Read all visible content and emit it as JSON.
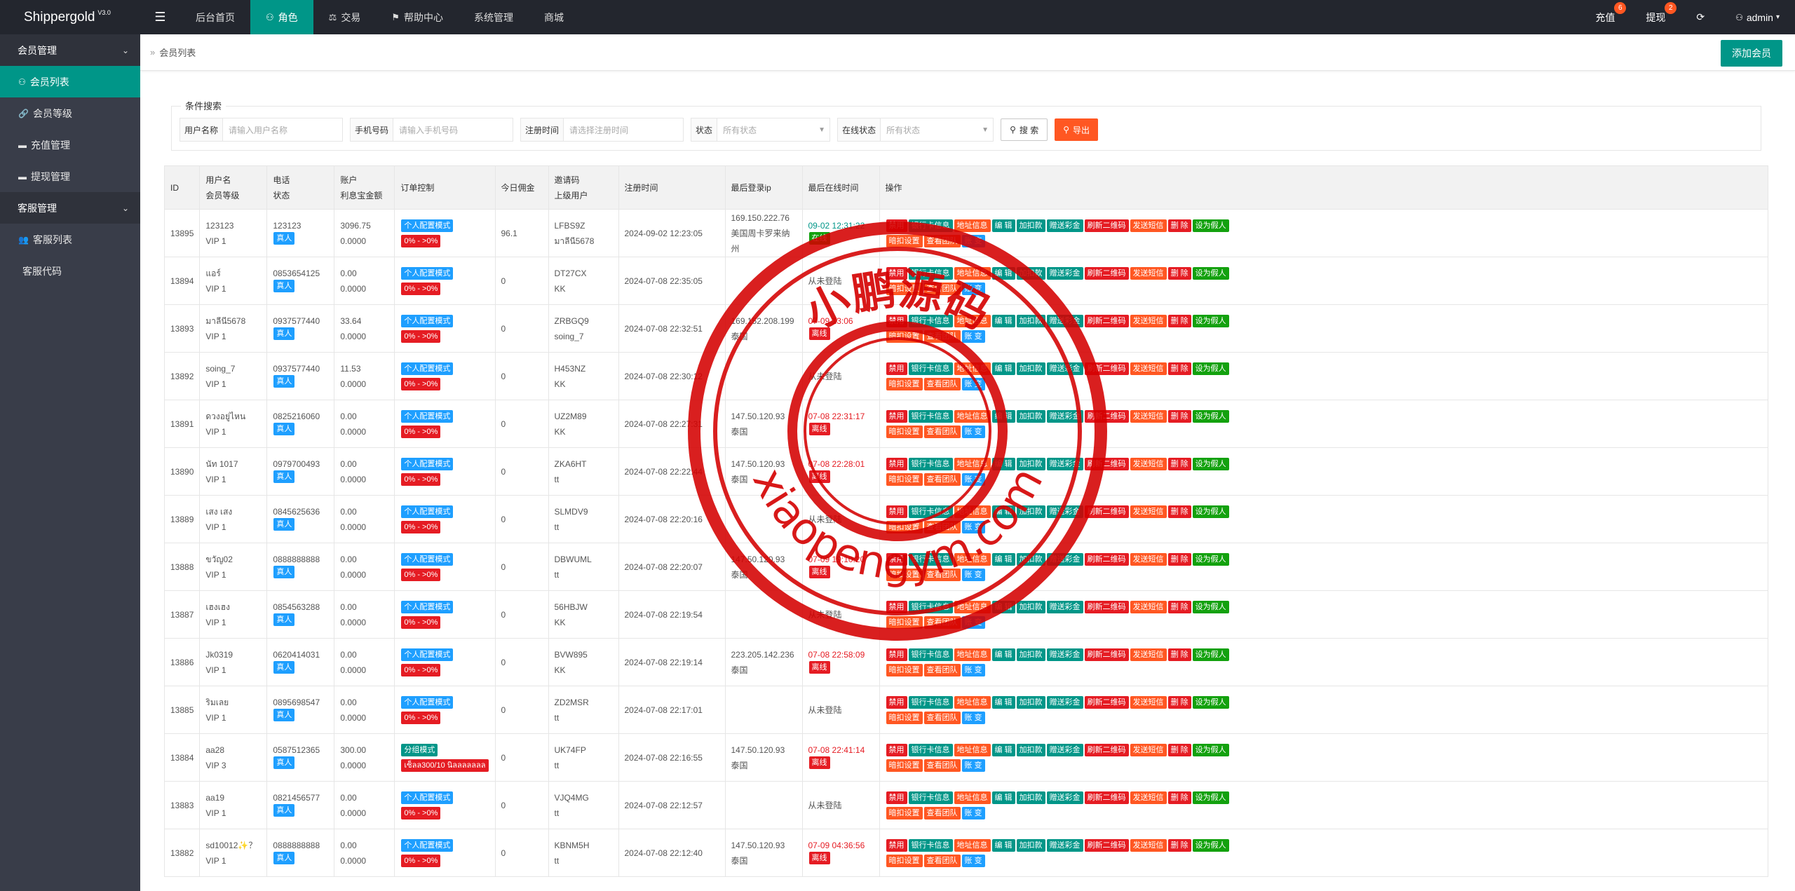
{
  "app": {
    "name": "Shippergold",
    "version": "V3.0"
  },
  "topnav": [
    {
      "label": "后台首页",
      "icon": ""
    },
    {
      "label": "角色",
      "icon": "user-icon",
      "active": true
    },
    {
      "label": "交易",
      "icon": "scale-icon"
    },
    {
      "label": "帮助中心",
      "icon": "flag-icon"
    },
    {
      "label": "系统管理",
      "icon": ""
    },
    {
      "label": "商城",
      "icon": ""
    }
  ],
  "topright": {
    "recharge": "充值",
    "recharge_badge": "6",
    "withdraw": "提现",
    "withdraw_badge": "2",
    "user": "admin"
  },
  "sidebar": {
    "groups": [
      {
        "label": "会员管理",
        "items": [
          "会员列表",
          "会员等级",
          "充值管理",
          "提现管理"
        ]
      },
      {
        "label": "客服管理",
        "items": [
          "客服列表",
          "客服代码"
        ]
      }
    ]
  },
  "breadcrumb": "会员列表",
  "add_button": "添加会员",
  "search": {
    "title": "条件搜索",
    "username_label": "用户名称",
    "username_placeholder": "请输入用户名称",
    "phone_label": "手机号码",
    "phone_placeholder": "请输入手机号码",
    "regtime_label": "注册时间",
    "regtime_placeholder": "请选择注册时间",
    "status_label": "状态",
    "status_value": "所有状态",
    "online_label": "在线状态",
    "online_value": "所有状态",
    "search_btn": "搜 索",
    "export_btn": "导出"
  },
  "table": {
    "headers": {
      "id": "ID",
      "user1": "用户名",
      "user2": "会员等级",
      "phone1": "电话",
      "phone2": "状态",
      "acct1": "账户",
      "acct2": "利息宝金额",
      "order": "订单控制",
      "today": "今日佣金",
      "code1": "邀请码",
      "code2": "上级用户",
      "reg": "注册时间",
      "lastip": "最后登录ip",
      "lastonline": "最后在线时间",
      "ops": "操作"
    },
    "rows": [
      {
        "id": "13895",
        "name": "123123",
        "level": "VIP 1",
        "phone": "123123",
        "status": "真人",
        "balance": "3096.75",
        "interest": "0.0000",
        "mode": "个人配置模式",
        "range": "0% - >0%",
        "today": "96.1",
        "code": "LFBS9Z",
        "parent": "มาลีนี5678",
        "reg": "2024-09-02 12:23:05",
        "ip": "169.150.222.76",
        "loc": "美国周卡罗来纳州",
        "last": "09-02 12:31:22",
        "state": "在线"
      },
      {
        "id": "13894",
        "name": "แอร์",
        "level": "VIP 1",
        "phone": "0853654125",
        "status": "真人",
        "balance": "0.00",
        "interest": "0.0000",
        "mode": "个人配置模式",
        "range": "0% - >0%",
        "today": "0",
        "code": "DT27CX",
        "parent": "KK",
        "reg": "2024-07-08 22:35:05",
        "ip": "",
        "loc": "",
        "last": "从未登陆",
        "state": ""
      },
      {
        "id": "13893",
        "name": "มาลีนี5678",
        "level": "VIP 1",
        "phone": "0937577440",
        "status": "真人",
        "balance": "33.64",
        "interest": "0.0000",
        "mode": "个人配置模式",
        "range": "0% - >0%",
        "today": "0",
        "code": "ZRBGQ9",
        "parent": "soing_7",
        "reg": "2024-07-08 22:32:51",
        "ip": "169.152.208.199",
        "loc": "泰国",
        "last": "07-09 13:06",
        "state": "离线"
      },
      {
        "id": "13892",
        "name": "soing_7",
        "level": "VIP 1",
        "phone": "0937577440",
        "status": "真人",
        "balance": "11.53",
        "interest": "0.0000",
        "mode": "个人配置模式",
        "range": "0% - >0%",
        "today": "0",
        "code": "H453NZ",
        "parent": "KK",
        "reg": "2024-07-08 22:30:12",
        "ip": "",
        "loc": "",
        "last": "从未登陆",
        "state": ""
      },
      {
        "id": "13891",
        "name": "ดวงอยู่ไหน",
        "level": "VIP 1",
        "phone": "0825216060",
        "status": "真人",
        "balance": "0.00",
        "interest": "0.0000",
        "mode": "个人配置模式",
        "range": "0% - >0%",
        "today": "0",
        "code": "UZ2M89",
        "parent": "KK",
        "reg": "2024-07-08 22:27:31",
        "ip": "147.50.120.93",
        "loc": "泰国",
        "last": "07-08 22:31:17",
        "state": "离线"
      },
      {
        "id": "13890",
        "name": "นัท 1017",
        "level": "VIP 1",
        "phone": "0979700493",
        "status": "真人",
        "balance": "0.00",
        "interest": "0.0000",
        "mode": "个人配置模式",
        "range": "0% - >0%",
        "today": "0",
        "code": "ZKA6HT",
        "parent": "tt",
        "reg": "2024-07-08 22:22:44",
        "ip": "147.50.120.93",
        "loc": "泰国",
        "last": "07-08 22:28:01",
        "state": "离线"
      },
      {
        "id": "13889",
        "name": "เสง เสง",
        "level": "VIP 1",
        "phone": "0845625636",
        "status": "真人",
        "balance": "0.00",
        "interest": "0.0000",
        "mode": "个人配置模式",
        "range": "0% - >0%",
        "today": "0",
        "code": "SLMDV9",
        "parent": "tt",
        "reg": "2024-07-08 22:20:16",
        "ip": "",
        "loc": "",
        "last": "从未登陆",
        "state": ""
      },
      {
        "id": "13888",
        "name": "ขวัญ02",
        "level": "VIP 1",
        "phone": "0888888888",
        "status": "真人",
        "balance": "0.00",
        "interest": "0.0000",
        "mode": "个人配置模式",
        "range": "0% - >0%",
        "today": "0",
        "code": "DBWUML",
        "parent": "tt",
        "reg": "2024-07-08 22:20:07",
        "ip": "147.50.120.93",
        "loc": "泰国",
        "last": "07-09 19:10:20",
        "state": "离线"
      },
      {
        "id": "13887",
        "name": "เฮงเฮง",
        "level": "VIP 1",
        "phone": "0854563288",
        "status": "真人",
        "balance": "0.00",
        "interest": "0.0000",
        "mode": "个人配置模式",
        "range": "0% - >0%",
        "today": "0",
        "code": "56HBJW",
        "parent": "KK",
        "reg": "2024-07-08 22:19:54",
        "ip": "",
        "loc": "",
        "last": "从未登陆",
        "state": ""
      },
      {
        "id": "13886",
        "name": "Jk0319",
        "level": "VIP 1",
        "phone": "0620414031",
        "status": "真人",
        "balance": "0.00",
        "interest": "0.0000",
        "mode": "个人配置模式",
        "range": "0% - >0%",
        "today": "0",
        "code": "BVW895",
        "parent": "KK",
        "reg": "2024-07-08 22:19:14",
        "ip": "223.205.142.236",
        "loc": "泰国",
        "last": "07-08 22:58:09",
        "state": "离线"
      },
      {
        "id": "13885",
        "name": "ริมเลย",
        "level": "VIP 1",
        "phone": "0895698547",
        "status": "真人",
        "balance": "0.00",
        "interest": "0.0000",
        "mode": "个人配置模式",
        "range": "0% - >0%",
        "today": "0",
        "code": "ZD2MSR",
        "parent": "tt",
        "reg": "2024-07-08 22:17:01",
        "ip": "",
        "loc": "",
        "last": "从未登陆",
        "state": ""
      },
      {
        "id": "13884",
        "name": "aa28",
        "level": "VIP 3",
        "phone": "0587512365",
        "status": "真人",
        "balance": "300.00",
        "interest": "0.0000",
        "mode": "分组模式",
        "range": "เซ็ลล300/10 นิลลลลลลล",
        "today": "0",
        "code": "UK74FP",
        "parent": "tt",
        "reg": "2024-07-08 22:16:55",
        "ip": "147.50.120.93",
        "loc": "泰国",
        "last": "07-08 22:41:14",
        "state": "离线"
      },
      {
        "id": "13883",
        "name": "aa19",
        "level": "VIP 1",
        "phone": "0821456577",
        "status": "真人",
        "balance": "0.00",
        "interest": "0.0000",
        "mode": "个人配置模式",
        "range": "0% - >0%",
        "today": "0",
        "code": "VJQ4MG",
        "parent": "tt",
        "reg": "2024-07-08 22:12:57",
        "ip": "",
        "loc": "",
        "last": "从未登陆",
        "state": ""
      },
      {
        "id": "13882",
        "name": "sd10012✨？",
        "level": "VIP 1",
        "phone": "0888888888",
        "status": "真人",
        "balance": "0.00",
        "interest": "0.0000",
        "mode": "个人配置模式",
        "range": "0% - >0%",
        "today": "0",
        "code": "KBNM5H",
        "parent": "tt",
        "reg": "2024-07-08 22:12:40",
        "ip": "147.50.120.93",
        "loc": "泰国",
        "last": "07-09 04:36:56",
        "state": "离线"
      }
    ],
    "ops_row1": [
      {
        "label": "禁用",
        "color": "red"
      },
      {
        "label": "银行卡信息",
        "color": "green"
      },
      {
        "label": "地址信息",
        "color": "orange"
      },
      {
        "label": "编 辑",
        "color": "green"
      },
      {
        "label": "加扣款",
        "color": "green"
      },
      {
        "label": "赠送彩金",
        "color": "green"
      },
      {
        "label": "刷新二维码",
        "color": "red"
      },
      {
        "label": "发送短信",
        "color": "orange"
      },
      {
        "label": "删 除",
        "color": "red"
      },
      {
        "label": "设为假人",
        "color": "dgreen"
      }
    ],
    "ops_row2": [
      {
        "label": "暗扣设置",
        "color": "orange"
      },
      {
        "label": "查看团队",
        "color": "orange"
      },
      {
        "label": "账 变",
        "color": "blue"
      }
    ]
  },
  "watermark": {
    "top": "小鹏源码",
    "bottom": "xiaopengym.com"
  }
}
